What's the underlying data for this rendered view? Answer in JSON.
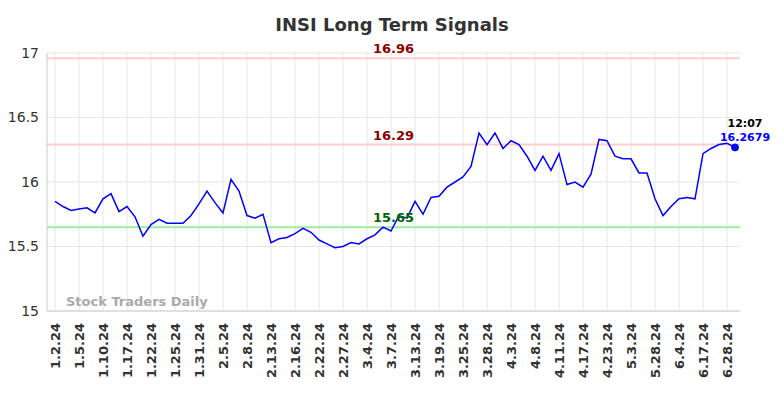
{
  "chart_data": {
    "type": "line",
    "title": "INSI Long Term Signals",
    "watermark": "Stock Traders Daily",
    "categories": [
      "1.2.24",
      null,
      null,
      "1.5.24",
      null,
      null,
      "1.10.24",
      null,
      null,
      "1.17.24",
      null,
      null,
      "1.22.24",
      null,
      null,
      "1.25.24",
      null,
      null,
      "1.31.24",
      null,
      null,
      "2.5.24",
      null,
      null,
      "2.8.24",
      null,
      null,
      "2.13.24",
      null,
      null,
      "2.16.24",
      null,
      null,
      "2.22.24",
      null,
      null,
      "2.27.24",
      null,
      null,
      "3.4.24",
      null,
      null,
      "3.7.24",
      null,
      null,
      "3.13.24",
      null,
      null,
      "3.19.24",
      null,
      null,
      "3.25.24",
      null,
      null,
      "3.28.24",
      null,
      null,
      "4.3.24",
      null,
      null,
      "4.8.24",
      null,
      null,
      "4.11.24",
      null,
      null,
      "4.17.24",
      null,
      null,
      "4.23.24",
      null,
      null,
      "5.3.24",
      null,
      null,
      "5.28.24",
      null,
      null,
      "6.4.24",
      null,
      null,
      "6.17.24",
      null,
      null,
      "6.28.24",
      null
    ],
    "values": [
      15.85,
      15.81,
      15.78,
      15.79,
      15.8,
      15.76,
      15.87,
      15.91,
      15.77,
      15.81,
      15.73,
      15.58,
      15.67,
      15.71,
      15.68,
      15.68,
      15.68,
      15.74,
      15.83,
      15.93,
      15.84,
      15.76,
      16.02,
      15.93,
      15.74,
      15.72,
      15.75,
      15.53,
      15.56,
      15.57,
      15.6,
      15.64,
      15.61,
      15.55,
      15.52,
      15.49,
      15.5,
      15.53,
      15.52,
      15.56,
      15.59,
      15.65,
      15.62,
      15.74,
      15.72,
      15.85,
      15.75,
      15.88,
      15.89,
      15.96,
      16.0,
      16.04,
      16.12,
      16.38,
      16.29,
      16.38,
      16.26,
      16.32,
      16.29,
      16.2,
      16.09,
      16.2,
      16.09,
      16.22,
      15.98,
      16.0,
      15.96,
      16.06,
      16.33,
      16.32,
      16.2,
      16.18,
      16.18,
      16.07,
      16.07,
      15.87,
      15.74,
      15.81,
      15.87,
      15.88,
      15.87,
      16.22,
      16.26,
      16.29,
      16.3,
      16.2679
    ],
    "color": "#0000ff",
    "ylim": [
      15,
      17
    ],
    "yticks": [
      15,
      15.5,
      16,
      16.5,
      17
    ],
    "grid": true,
    "reference_lines": [
      {
        "value": 16.96,
        "label": "16.96",
        "color": "#ffcccc",
        "label_color": "#8b0000"
      },
      {
        "value": 16.29,
        "label": "16.29",
        "color": "#ffcccc",
        "label_color": "#8b0000"
      },
      {
        "value": 15.65,
        "label": "15.65",
        "color": "#99ee99",
        "label_color": "#006400"
      }
    ],
    "last_point": {
      "time": "12:07",
      "value": 16.2679,
      "label": "16.2679"
    }
  }
}
